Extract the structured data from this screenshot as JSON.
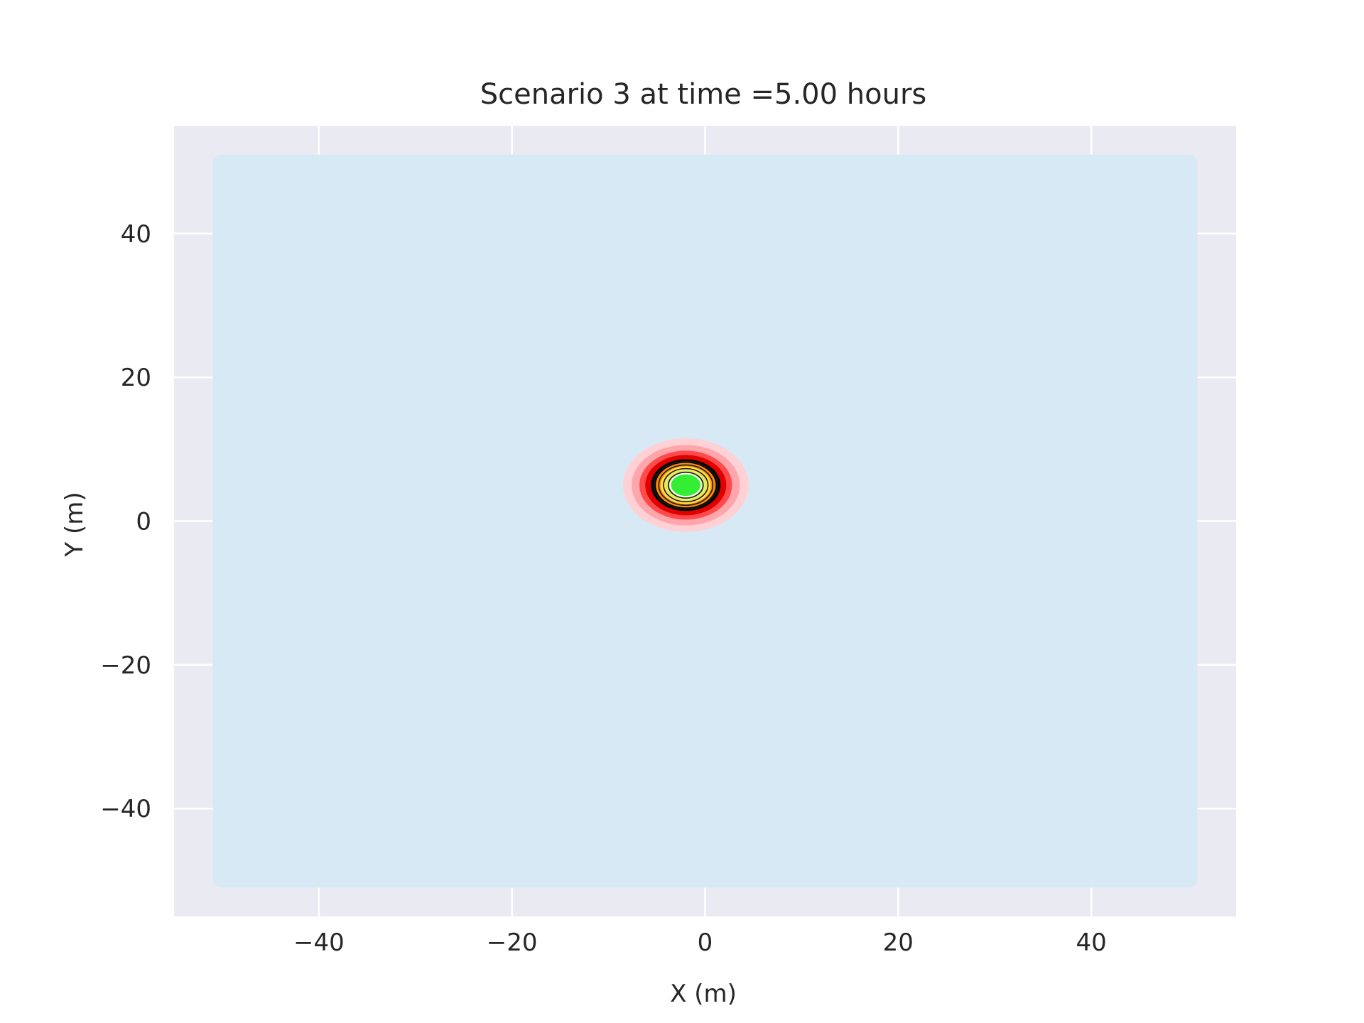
{
  "chart_data": {
    "type": "heatmap",
    "title": "Scenario 3 at time =5.00 hours",
    "xlabel": "X (m)",
    "ylabel": "Y (m)",
    "xlim": [
      -55,
      55
    ],
    "ylim": [
      -55,
      55
    ],
    "xticks": [
      -40,
      -20,
      0,
      20,
      40
    ],
    "yticks": [
      -40,
      -20,
      0,
      20,
      40
    ],
    "xtick_labels": [
      "−40",
      "−20",
      "0",
      "20",
      "40"
    ],
    "ytick_labels": [
      "−40",
      "−20",
      "0",
      "20",
      "40"
    ],
    "grid": true,
    "domain": {
      "x": [
        -51,
        51
      ],
      "y": [
        -51,
        51
      ]
    },
    "plume": {
      "center": {
        "x": -2,
        "y": 5
      },
      "contours": [
        {
          "radius": 6.5,
          "color": "#ffd0d4"
        },
        {
          "radius": 5.6,
          "color": "#ffa6ad"
        },
        {
          "radius": 4.8,
          "color": "#ff4b4b"
        },
        {
          "radius": 4.2,
          "color": "#e00000"
        },
        {
          "radius": 3.6,
          "color": "#000000"
        },
        {
          "radius": 3.1,
          "color": "#ff8c00"
        },
        {
          "radius": 2.6,
          "color": "#ffe14d"
        },
        {
          "radius": 2.1,
          "color": "#d8f06a"
        },
        {
          "radius": 1.6,
          "color": "#34ee34"
        }
      ],
      "contour_lines": [
        {
          "radius": 3.3
        },
        {
          "radius": 2.8
        },
        {
          "radius": 2.3
        },
        {
          "radius": 1.8
        }
      ]
    },
    "colors": {
      "axes_bg": "#eaeaf2",
      "domain_fill": "#d8e9f6",
      "grid": "#ffffff",
      "text": "#262626"
    }
  }
}
